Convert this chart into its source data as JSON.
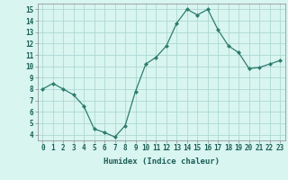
{
  "x": [
    0,
    1,
    2,
    3,
    4,
    5,
    6,
    7,
    8,
    9,
    10,
    11,
    12,
    13,
    14,
    15,
    16,
    17,
    18,
    19,
    20,
    21,
    22,
    23
  ],
  "y": [
    8.0,
    8.5,
    8.0,
    7.5,
    6.5,
    4.5,
    4.2,
    3.8,
    4.8,
    7.8,
    10.2,
    10.8,
    11.8,
    13.8,
    15.0,
    14.5,
    15.0,
    13.2,
    11.8,
    11.2,
    9.8,
    9.9,
    10.2,
    10.5
  ],
  "line_color": "#2e7d6e",
  "marker_color": "#2e7d6e",
  "bg_color": "#d8f5f0",
  "grid_color": "#aed8d2",
  "xlabel": "Humidex (Indice chaleur)",
  "xlim": [
    -0.5,
    23.5
  ],
  "ylim": [
    3.5,
    15.5
  ],
  "yticks": [
    4,
    5,
    6,
    7,
    8,
    9,
    10,
    11,
    12,
    13,
    14,
    15
  ],
  "xtick_labels": [
    "0",
    "1",
    "2",
    "3",
    "4",
    "5",
    "6",
    "7",
    "8",
    "9",
    "10",
    "11",
    "12",
    "13",
    "14",
    "15",
    "16",
    "17",
    "18",
    "19",
    "20",
    "21",
    "22",
    "23"
  ],
  "label_fontsize": 6.5,
  "tick_fontsize": 5.5
}
